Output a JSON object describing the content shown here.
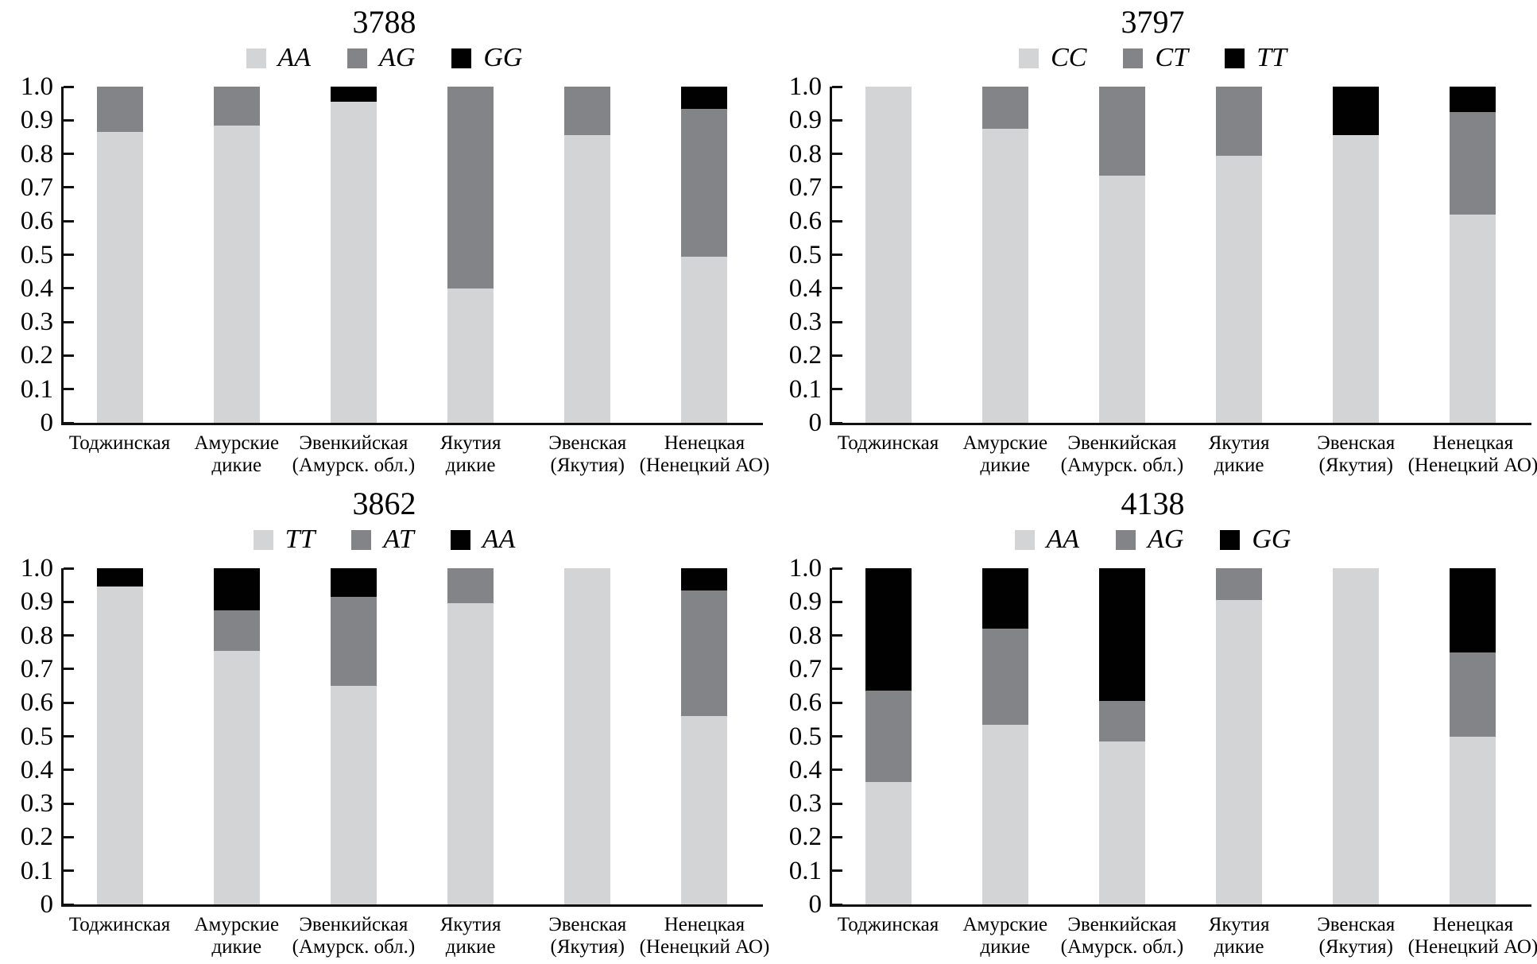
{
  "figure": {
    "description": "Four stacked bar charts of genotype frequencies in reindeer populations",
    "background": "#ffffff"
  },
  "colors": {
    "light": "#d3d4d6",
    "mid": "#828487",
    "dark": "#010101",
    "axis": "#111111"
  },
  "y_axis": {
    "min": 0,
    "max": 1,
    "tick_labels": [
      "1.0",
      "0.9",
      "0.8",
      "0.7",
      "0.6",
      "0.5",
      "0.4",
      "0.3",
      "0.2",
      "0.1",
      "0"
    ]
  },
  "category_lines": [
    [
      "Тоджинская"
    ],
    [
      "Амурские",
      "дикие"
    ],
    [
      "Эвенкийская",
      "(Амурск. обл.)"
    ],
    [
      "Якутия",
      "дикие"
    ],
    [
      "Эвенская",
      "(Якутия)"
    ],
    [
      "Ненецкая",
      "(Ненецкий АО)"
    ]
  ],
  "chart_data": [
    {
      "type": "bar",
      "stacked": true,
      "title": "3788",
      "ylim": [
        0,
        1
      ],
      "grid": false,
      "legend_position": "top",
      "categories": [
        "Тоджинская",
        "Амурские дикие",
        "Эвенкийская (Амурск. обл.)",
        "Якутия дикие",
        "Эвенская (Якутия)",
        "Ненецкая (Ненецкий АО)"
      ],
      "series": [
        {
          "name": "AA",
          "color": "light",
          "values": [
            0.865,
            0.885,
            0.955,
            0.4,
            0.855,
            0.495
          ]
        },
        {
          "name": "AG",
          "color": "mid",
          "values": [
            0.135,
            0.115,
            0.0,
            0.6,
            0.145,
            0.44
          ]
        },
        {
          "name": "GG",
          "color": "dark",
          "values": [
            0.0,
            0.0,
            0.045,
            0.0,
            0.0,
            0.065
          ]
        }
      ]
    },
    {
      "type": "bar",
      "stacked": true,
      "title": "3797",
      "ylim": [
        0,
        1
      ],
      "grid": false,
      "legend_position": "top",
      "categories": [
        "Тоджинская",
        "Амурские дикие",
        "Эвенкийская (Амурск. обл.)",
        "Якутия дикие",
        "Эвенская (Якутия)",
        "Ненецкая (Ненецкий АО)"
      ],
      "series": [
        {
          "name": "CC",
          "color": "light",
          "values": [
            1.0,
            0.875,
            0.735,
            0.795,
            0.855,
            0.62
          ]
        },
        {
          "name": "CT",
          "color": "mid",
          "values": [
            0.0,
            0.125,
            0.265,
            0.205,
            0.0,
            0.305
          ]
        },
        {
          "name": "TT",
          "color": "dark",
          "values": [
            0.0,
            0.0,
            0.0,
            0.0,
            0.145,
            0.075
          ]
        }
      ]
    },
    {
      "type": "bar",
      "stacked": true,
      "title": "3862",
      "ylim": [
        0,
        1
      ],
      "grid": false,
      "legend_position": "top",
      "categories": [
        "Тоджинская",
        "Амурские дикие",
        "Эвенкийская (Амурск. обл.)",
        "Якутия дикие",
        "Эвенская (Якутия)",
        "Ненецкая (Ненецкий АО)"
      ],
      "series": [
        {
          "name": "TT",
          "color": "light",
          "values": [
            0.945,
            0.755,
            0.65,
            0.895,
            1.0,
            0.56
          ]
        },
        {
          "name": "AT",
          "color": "mid",
          "values": [
            0.0,
            0.12,
            0.265,
            0.105,
            0.0,
            0.375
          ]
        },
        {
          "name": "AA",
          "color": "dark",
          "values": [
            0.055,
            0.125,
            0.085,
            0.0,
            0.0,
            0.065
          ]
        }
      ]
    },
    {
      "type": "bar",
      "stacked": true,
      "title": "4138",
      "ylim": [
        0,
        1
      ],
      "grid": false,
      "legend_position": "top",
      "categories": [
        "Тоджинская",
        "Амурские дикие",
        "Эвенкийская (Амурск. обл.)",
        "Якутия дикие",
        "Эвенская (Якутия)",
        "Ненецкая (Ненецкий АО)"
      ],
      "series": [
        {
          "name": "AA",
          "color": "light",
          "values": [
            0.365,
            0.535,
            0.485,
            0.905,
            1.0,
            0.5
          ]
        },
        {
          "name": "AG",
          "color": "mid",
          "values": [
            0.27,
            0.285,
            0.12,
            0.095,
            0.0,
            0.25
          ]
        },
        {
          "name": "GG",
          "color": "dark",
          "values": [
            0.365,
            0.18,
            0.395,
            0.0,
            0.0,
            0.25
          ]
        }
      ]
    }
  ]
}
